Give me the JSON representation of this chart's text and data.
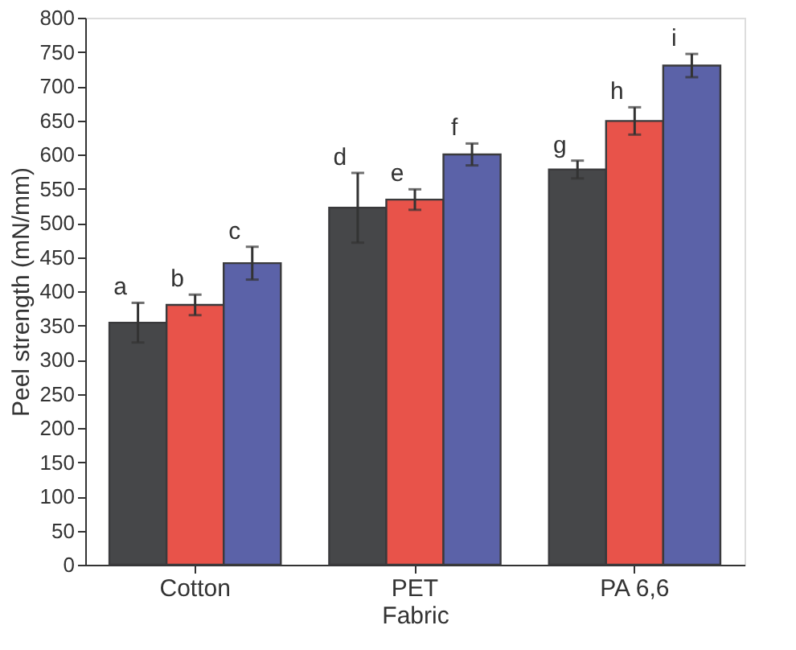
{
  "chart_data": {
    "type": "bar",
    "xlabel": "Fabric",
    "ylabel": "Peel strength (mN/mm)",
    "categories": [
      "Cotton",
      "PET",
      "PA 6,6"
    ],
    "series": [
      {
        "color": "#464749",
        "values": [
          354,
          522,
          578
        ],
        "errors": [
          29,
          51,
          13
        ]
      },
      {
        "color": "#e8534a",
        "values": [
          380,
          534,
          649
        ],
        "errors": [
          15,
          15,
          20
        ]
      },
      {
        "color": "#5b62a8",
        "values": [
          441,
          600,
          730
        ],
        "errors": [
          24,
          16,
          17
        ]
      }
    ],
    "ylim": [
      0,
      800
    ],
    "yticks": [
      0,
      50,
      100,
      150,
      200,
      250,
      300,
      350,
      400,
      450,
      500,
      550,
      600,
      650,
      700,
      750,
      800
    ],
    "grid": false,
    "legend": false,
    "annotations": [
      "a",
      "b",
      "c",
      "d",
      "e",
      "f",
      "g",
      "h",
      "i"
    ]
  }
}
